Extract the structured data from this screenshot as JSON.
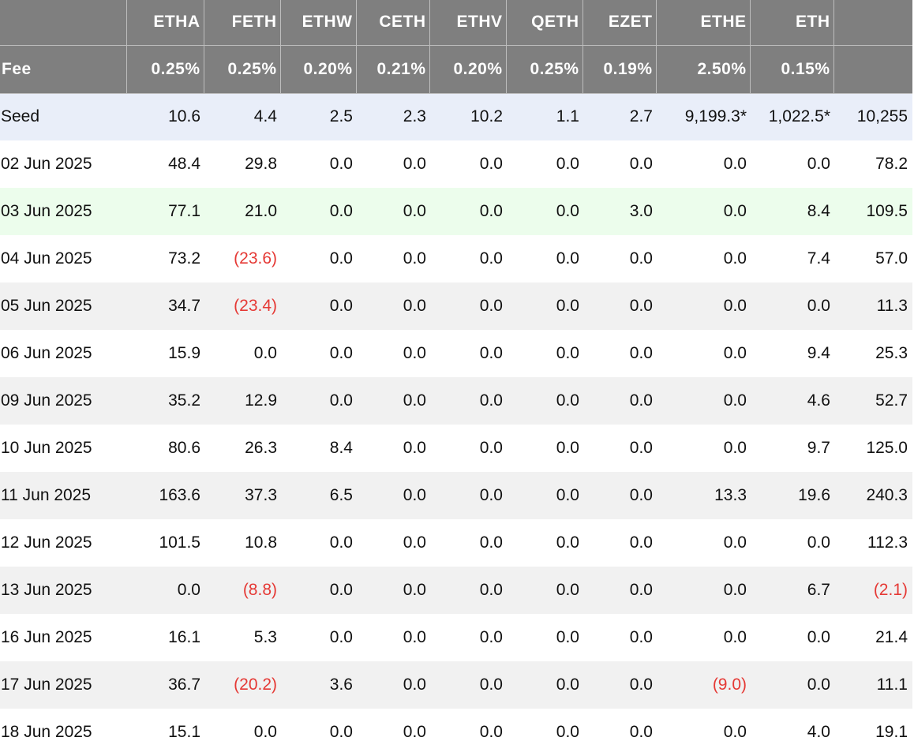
{
  "header": {
    "date_col": "",
    "tickers": [
      "ETHA",
      "FETH",
      "ETHW",
      "CETH",
      "ETHV",
      "QETH",
      "EZET",
      "ETHE",
      "ETH",
      ""
    ],
    "fee_label": "Fee",
    "fees": [
      "0.25%",
      "0.25%",
      "0.20%",
      "0.21%",
      "0.20%",
      "0.25%",
      "0.19%",
      "2.50%",
      "0.15%",
      ""
    ]
  },
  "rows": [
    {
      "label": "Seed",
      "values": [
        "10.6",
        "4.4",
        "2.5",
        "2.3",
        "10.2",
        "1.1",
        "2.7",
        "9,199.3*",
        "1,022.5*",
        "10,255"
      ]
    },
    {
      "label": "02 Jun 2025",
      "values": [
        "48.4",
        "29.8",
        "0.0",
        "0.0",
        "0.0",
        "0.0",
        "0.0",
        "0.0",
        "0.0",
        "78.2"
      ]
    },
    {
      "label": "03 Jun 2025",
      "values": [
        "77.1",
        "21.0",
        "0.0",
        "0.0",
        "0.0",
        "0.0",
        "3.0",
        "0.0",
        "8.4",
        "109.5"
      ]
    },
    {
      "label": "04 Jun 2025",
      "values": [
        "73.2",
        "(23.6)",
        "0.0",
        "0.0",
        "0.0",
        "0.0",
        "0.0",
        "0.0",
        "7.4",
        "57.0"
      ]
    },
    {
      "label": "05 Jun 2025",
      "values": [
        "34.7",
        "(23.4)",
        "0.0",
        "0.0",
        "0.0",
        "0.0",
        "0.0",
        "0.0",
        "0.0",
        "11.3"
      ]
    },
    {
      "label": "06 Jun 2025",
      "values": [
        "15.9",
        "0.0",
        "0.0",
        "0.0",
        "0.0",
        "0.0",
        "0.0",
        "0.0",
        "9.4",
        "25.3"
      ]
    },
    {
      "label": "09 Jun 2025",
      "values": [
        "35.2",
        "12.9",
        "0.0",
        "0.0",
        "0.0",
        "0.0",
        "0.0",
        "0.0",
        "4.6",
        "52.7"
      ]
    },
    {
      "label": "10 Jun 2025",
      "values": [
        "80.6",
        "26.3",
        "8.4",
        "0.0",
        "0.0",
        "0.0",
        "0.0",
        "0.0",
        "9.7",
        "125.0"
      ]
    },
    {
      "label": "11 Jun 2025",
      "values": [
        "163.6",
        "37.3",
        "6.5",
        "0.0",
        "0.0",
        "0.0",
        "0.0",
        "13.3",
        "19.6",
        "240.3"
      ]
    },
    {
      "label": "12 Jun 2025",
      "values": [
        "101.5",
        "10.8",
        "0.0",
        "0.0",
        "0.0",
        "0.0",
        "0.0",
        "0.0",
        "0.0",
        "112.3"
      ]
    },
    {
      "label": "13 Jun 2025",
      "values": [
        "0.0",
        "(8.8)",
        "0.0",
        "0.0",
        "0.0",
        "0.0",
        "0.0",
        "0.0",
        "6.7",
        "(2.1)"
      ]
    },
    {
      "label": "16 Jun 2025",
      "values": [
        "16.1",
        "5.3",
        "0.0",
        "0.0",
        "0.0",
        "0.0",
        "0.0",
        "0.0",
        "0.0",
        "21.4"
      ]
    },
    {
      "label": "17 Jun 2025",
      "values": [
        "36.7",
        "(20.2)",
        "3.6",
        "0.0",
        "0.0",
        "0.0",
        "0.0",
        "(9.0)",
        "0.0",
        "11.1"
      ]
    },
    {
      "label": "18 Jun 2025",
      "values": [
        "15.1",
        "0.0",
        "0.0",
        "0.0",
        "0.0",
        "0.0",
        "0.0",
        "0.0",
        "4.0",
        "19.1"
      ]
    }
  ],
  "colors": {
    "header_bg": "#7f7f7f",
    "header_text": "#ffffff",
    "seed_row_bg": "#e9eef9",
    "highlight_row_bg": "#ecfdec",
    "alt_row_bg": "#f1f1f1",
    "negative_text": "#e53935"
  }
}
